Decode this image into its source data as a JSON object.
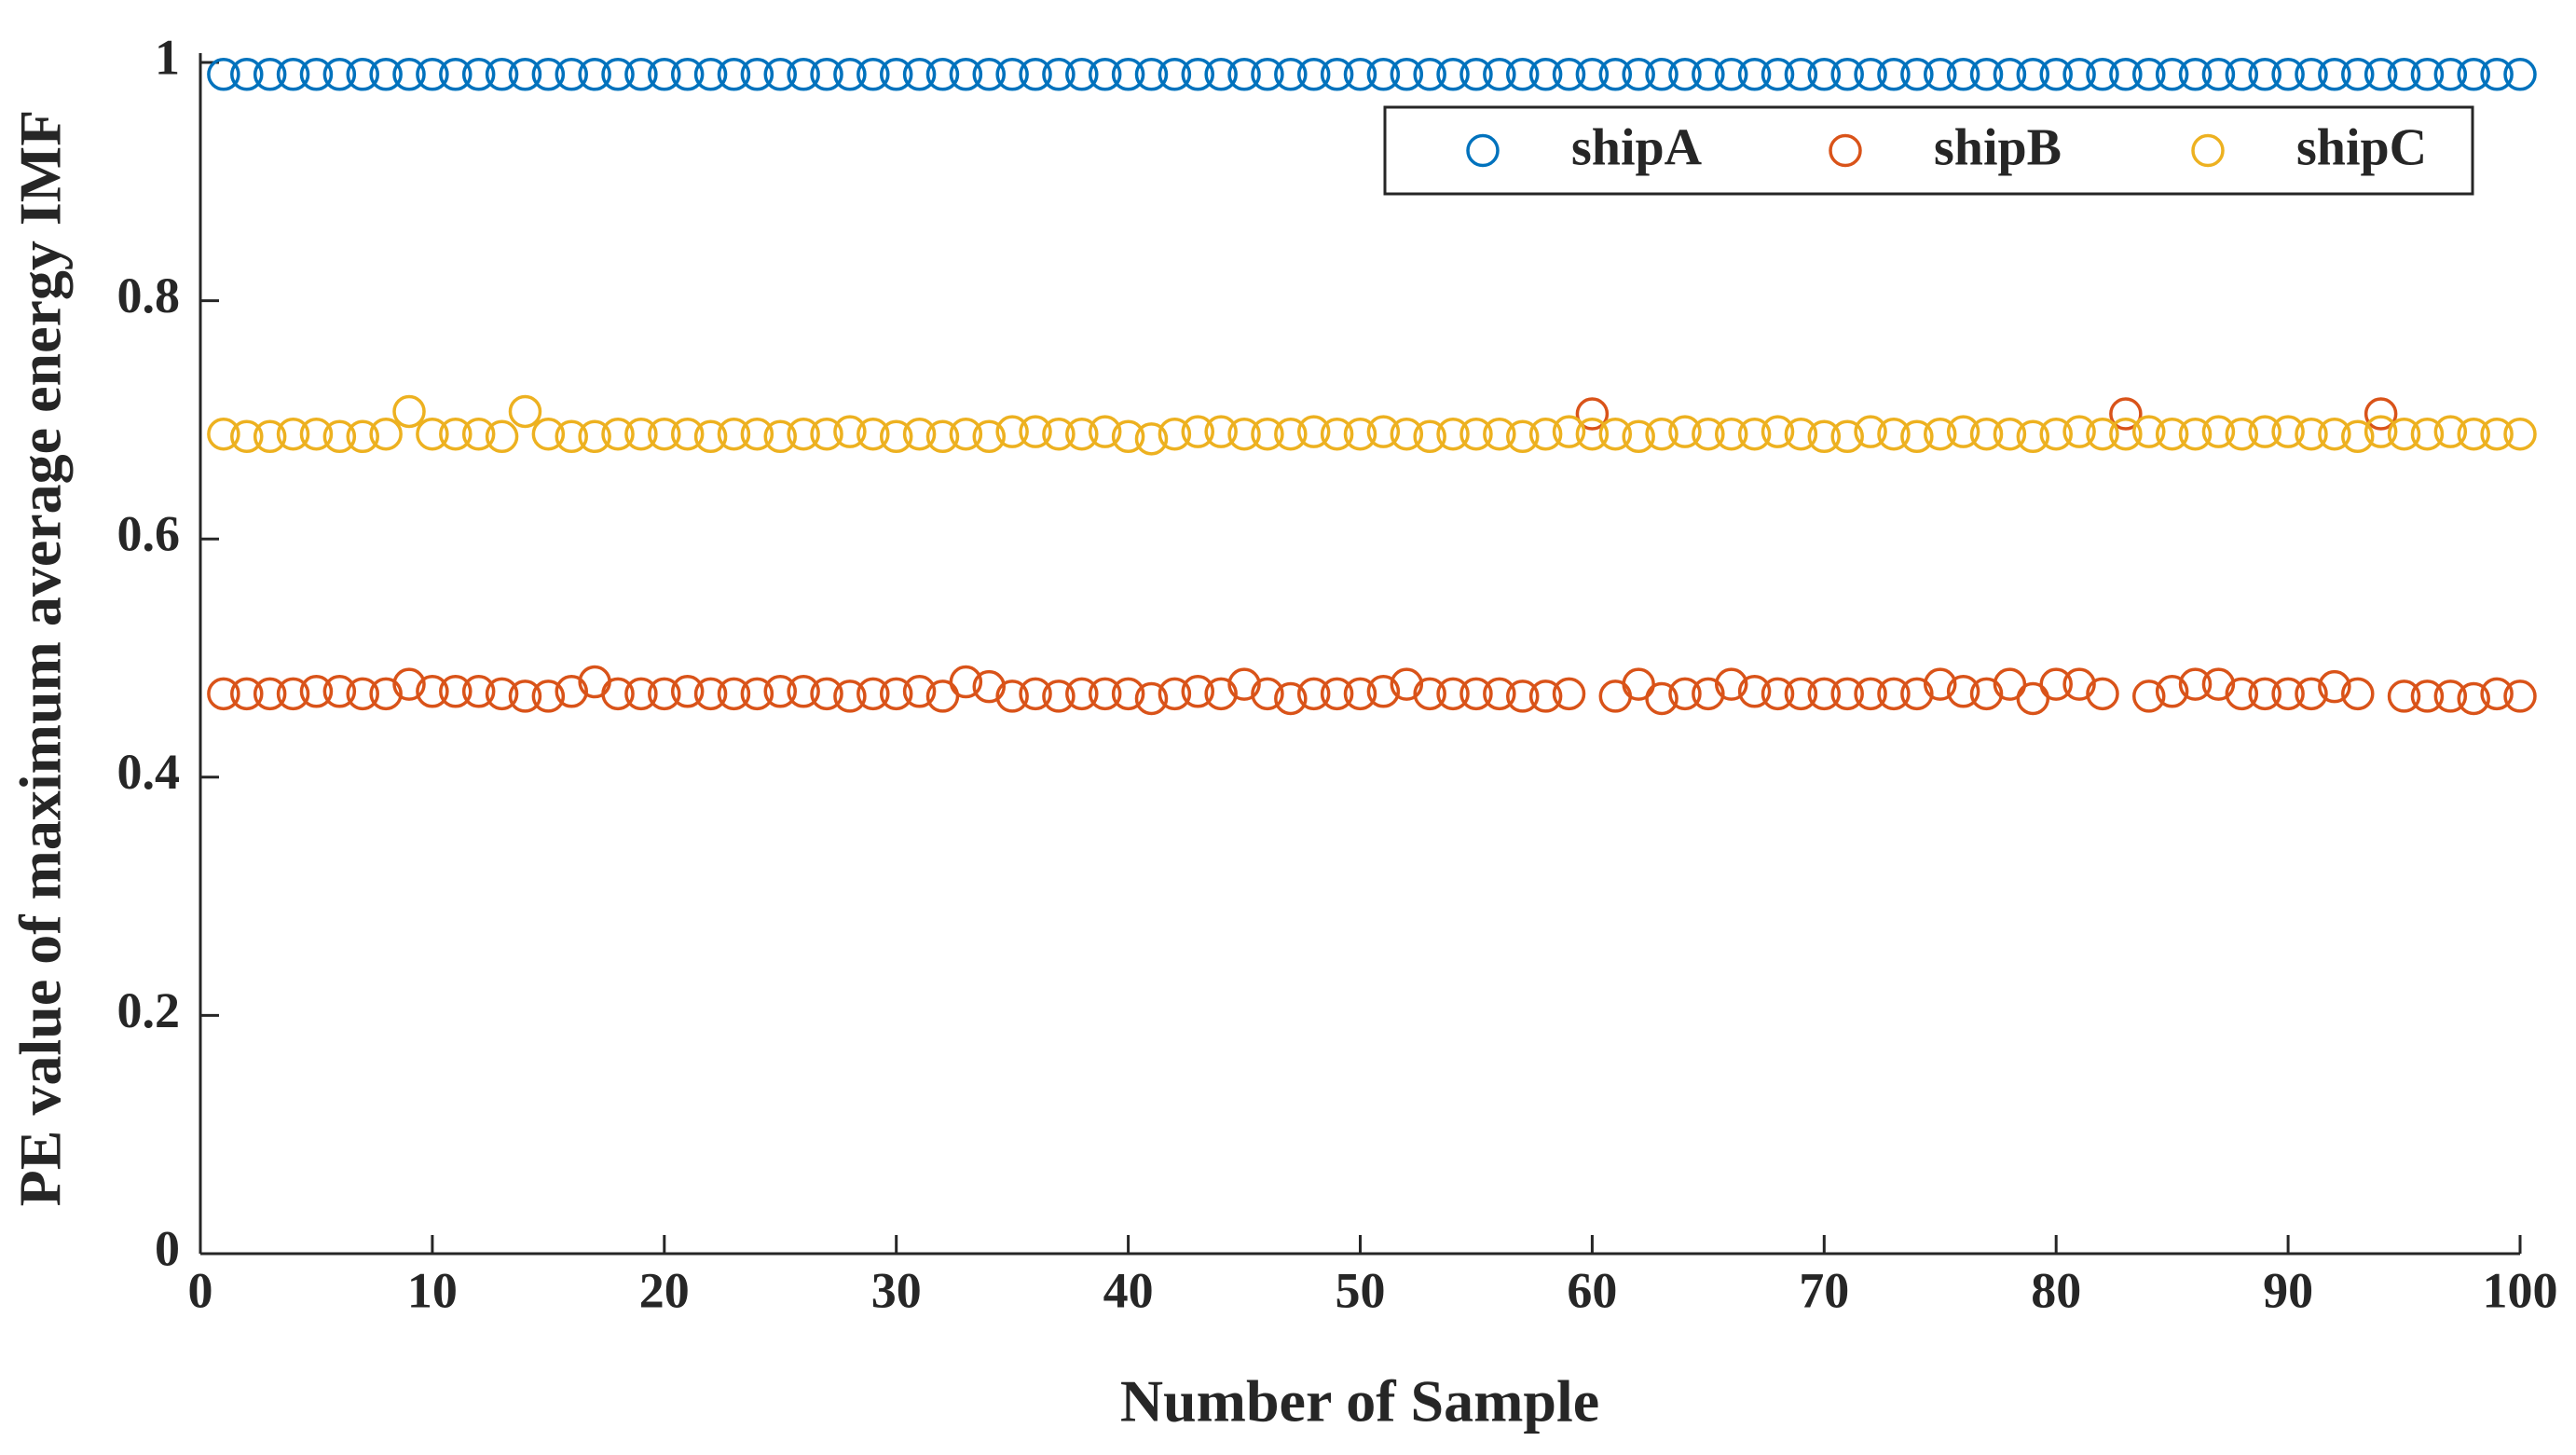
{
  "chart_data": {
    "type": "scatter",
    "xlabel": "Number of Sample",
    "ylabel": "PE value of maximum average energy IMF",
    "xlim": [
      0,
      100
    ],
    "xticks": [
      0,
      10,
      20,
      30,
      40,
      50,
      60,
      70,
      80,
      90,
      100
    ],
    "ylim": [
      0,
      1
    ],
    "yticks": [
      0,
      0.2,
      0.4,
      0.6,
      0.8,
      1
    ],
    "grid": false,
    "legend": "upper right",
    "x": [
      1,
      2,
      3,
      4,
      5,
      6,
      7,
      8,
      9,
      10,
      11,
      12,
      13,
      14,
      15,
      16,
      17,
      18,
      19,
      20,
      21,
      22,
      23,
      24,
      25,
      26,
      27,
      28,
      29,
      30,
      31,
      32,
      33,
      34,
      35,
      36,
      37,
      38,
      39,
      40,
      41,
      42,
      43,
      44,
      45,
      46,
      47,
      48,
      49,
      50,
      51,
      52,
      53,
      54,
      55,
      56,
      57,
      58,
      59,
      60,
      61,
      62,
      63,
      64,
      65,
      66,
      67,
      68,
      69,
      70,
      71,
      72,
      73,
      74,
      75,
      76,
      77,
      78,
      79,
      80,
      81,
      82,
      83,
      84,
      85,
      86,
      87,
      88,
      89,
      90,
      91,
      92,
      93,
      94,
      95,
      96,
      97,
      98,
      99,
      100
    ],
    "series": [
      {
        "name": "shipA",
        "color": "#0072BD",
        "values": [
          0.99,
          0.99,
          0.99,
          0.99,
          0.99,
          0.99,
          0.99,
          0.99,
          0.99,
          0.99,
          0.99,
          0.99,
          0.99,
          0.99,
          0.99,
          0.99,
          0.99,
          0.99,
          0.99,
          0.99,
          0.99,
          0.99,
          0.99,
          0.99,
          0.99,
          0.99,
          0.99,
          0.99,
          0.99,
          0.99,
          0.99,
          0.99,
          0.99,
          0.99,
          0.99,
          0.99,
          0.99,
          0.99,
          0.99,
          0.99,
          0.99,
          0.99,
          0.99,
          0.99,
          0.99,
          0.99,
          0.99,
          0.99,
          0.99,
          0.99,
          0.99,
          0.99,
          0.99,
          0.99,
          0.99,
          0.99,
          0.99,
          0.99,
          0.99,
          0.99,
          0.99,
          0.99,
          0.99,
          0.99,
          0.99,
          0.99,
          0.99,
          0.99,
          0.99,
          0.99,
          0.99,
          0.99,
          0.99,
          0.99,
          0.99,
          0.99,
          0.99,
          0.99,
          0.99,
          0.99,
          0.99,
          0.99,
          0.99,
          0.99,
          0.99,
          0.99,
          0.99,
          0.99,
          0.99,
          0.99,
          0.99,
          0.99,
          0.99,
          0.99,
          0.99,
          0.99,
          0.99,
          0.99,
          0.99,
          0.99
        ]
      },
      {
        "name": "shipB",
        "color": "#D95319",
        "values": [
          0.47,
          0.47,
          0.47,
          0.47,
          0.472,
          0.472,
          0.47,
          0.47,
          0.478,
          0.472,
          0.472,
          0.472,
          0.47,
          0.468,
          0.468,
          0.472,
          0.48,
          0.47,
          0.47,
          0.47,
          0.472,
          0.47,
          0.47,
          0.47,
          0.472,
          0.472,
          0.47,
          0.468,
          0.47,
          0.47,
          0.472,
          0.468,
          0.48,
          0.476,
          0.468,
          0.47,
          0.468,
          0.47,
          0.47,
          0.47,
          0.466,
          0.47,
          0.472,
          0.47,
          0.478,
          0.47,
          0.466,
          0.47,
          0.47,
          0.47,
          0.472,
          0.478,
          0.47,
          0.47,
          0.47,
          0.47,
          0.468,
          0.468,
          0.47,
          0.705,
          0.468,
          0.478,
          0.466,
          0.47,
          0.47,
          0.478,
          0.472,
          0.47,
          0.47,
          0.47,
          0.47,
          0.47,
          0.47,
          0.47,
          0.478,
          0.472,
          0.47,
          0.478,
          0.466,
          0.478,
          0.478,
          0.47,
          0.705,
          0.468,
          0.472,
          0.478,
          0.478,
          0.47,
          0.47,
          0.47,
          0.47,
          0.476,
          0.47,
          0.705,
          0.468,
          0.468,
          0.468,
          0.466,
          0.47,
          0.468
        ]
      },
      {
        "name": "shipC",
        "color": "#EDB120",
        "values": [
          0.688,
          0.686,
          0.686,
          0.688,
          0.688,
          0.686,
          0.686,
          0.688,
          0.707,
          0.688,
          0.688,
          0.688,
          0.686,
          0.707,
          0.688,
          0.686,
          0.686,
          0.688,
          0.688,
          0.688,
          0.688,
          0.686,
          0.688,
          0.688,
          0.686,
          0.688,
          0.688,
          0.69,
          0.688,
          0.686,
          0.688,
          0.686,
          0.688,
          0.686,
          0.69,
          0.69,
          0.688,
          0.688,
          0.69,
          0.686,
          0.684,
          0.688,
          0.69,
          0.69,
          0.688,
          0.688,
          0.688,
          0.69,
          0.688,
          0.688,
          0.69,
          0.688,
          0.686,
          0.688,
          0.688,
          0.688,
          0.686,
          0.688,
          0.69,
          0.688,
          0.688,
          0.686,
          0.688,
          0.69,
          0.688,
          0.688,
          0.688,
          0.69,
          0.688,
          0.686,
          0.686,
          0.69,
          0.688,
          0.686,
          0.688,
          0.69,
          0.688,
          0.688,
          0.686,
          0.688,
          0.69,
          0.688,
          0.688,
          0.69,
          0.688,
          0.688,
          0.69,
          0.688,
          0.69,
          0.69,
          0.688,
          0.688,
          0.686,
          0.69,
          0.688,
          0.688,
          0.69,
          0.688,
          0.688,
          0.688
        ]
      }
    ]
  }
}
